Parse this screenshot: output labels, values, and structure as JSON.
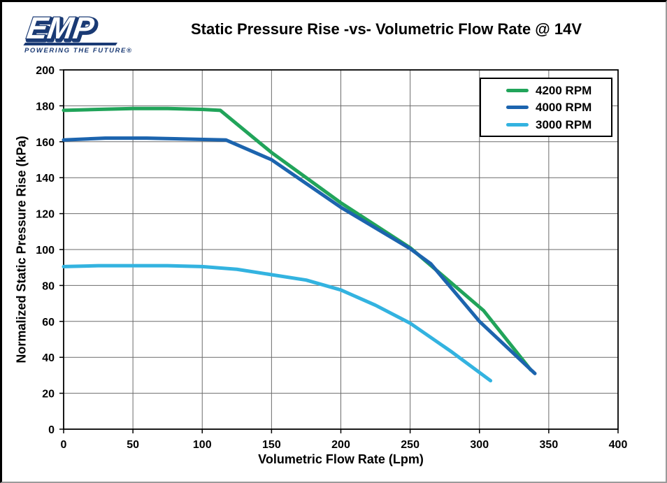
{
  "logo": {
    "brand": "EMP",
    "tagline": "POWERING THE FUTURE®",
    "color": "#1a3a74"
  },
  "title": "Static Pressure Rise -vs- Volumetric Flow Rate @ 14V",
  "chart_data": {
    "type": "line",
    "title": "Static Pressure Rise -vs- Volumetric Flow Rate @ 14V",
    "xlabel": "Volumetric Flow Rate (Lpm)",
    "ylabel": "Normalized Static Pressure Rise (kPa)",
    "xlim": [
      0,
      400
    ],
    "ylim": [
      0,
      200
    ],
    "xticks": [
      0,
      50,
      100,
      150,
      200,
      250,
      300,
      350,
      400
    ],
    "yticks": [
      0,
      20,
      40,
      60,
      80,
      100,
      120,
      140,
      160,
      180,
      200
    ],
    "grid": true,
    "grid_color": "#6b6b6b",
    "legend_position": "top-right",
    "series": [
      {
        "name": "4200 RPM",
        "color": "#21a45a",
        "points": [
          [
            0,
            177.5
          ],
          [
            25,
            178
          ],
          [
            50,
            178.5
          ],
          [
            75,
            178.5
          ],
          [
            100,
            178
          ],
          [
            113,
            177.5
          ],
          [
            150,
            154
          ],
          [
            200,
            126
          ],
          [
            250,
            101
          ],
          [
            303,
            66
          ],
          [
            337,
            33
          ]
        ]
      },
      {
        "name": "4000 RPM",
        "color": "#1c64ae",
        "points": [
          [
            0,
            161
          ],
          [
            30,
            162
          ],
          [
            60,
            162
          ],
          [
            90,
            161.5
          ],
          [
            117,
            161
          ],
          [
            150,
            150
          ],
          [
            200,
            123.5
          ],
          [
            250,
            100.5
          ],
          [
            265,
            92
          ],
          [
            300,
            60
          ],
          [
            340,
            31
          ]
        ]
      },
      {
        "name": "3000 RPM",
        "color": "#33b3e0",
        "points": [
          [
            0,
            90.5
          ],
          [
            25,
            91
          ],
          [
            50,
            91
          ],
          [
            75,
            91
          ],
          [
            100,
            90.5
          ],
          [
            125,
            89
          ],
          [
            150,
            86
          ],
          [
            175,
            83
          ],
          [
            200,
            77.5
          ],
          [
            225,
            69
          ],
          [
            250,
            59
          ],
          [
            280,
            43
          ],
          [
            308,
            27
          ]
        ]
      }
    ]
  }
}
